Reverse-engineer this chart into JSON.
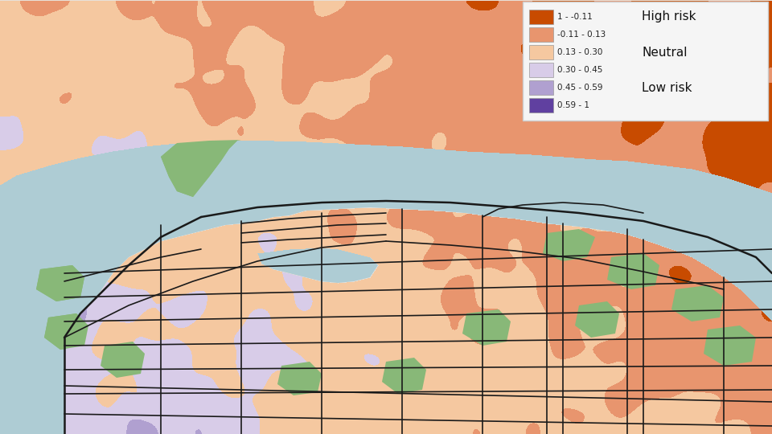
{
  "title": "",
  "figsize": [
    9.6,
    5.4
  ],
  "dpi": 100,
  "background_color": "#aeccd4",
  "legend_colors": [
    "#c84b00",
    "#e8956e",
    "#f5c8a0",
    "#d8cce8",
    "#b0a0d0",
    "#6040a0"
  ],
  "legend_labels": [
    "1 - -0.11",
    "-0.11 - 0.13",
    "0.13 - 0.30",
    "0.30 - 0.45",
    "0.45 - 0.59",
    "0.59 - 1"
  ],
  "risk_labels": [
    "High risk",
    "",
    "Neutral",
    "",
    "Low risk",
    ""
  ],
  "water_color": "#aeccd4",
  "land_bg_color": "#e8e0d8",
  "green_color": "#88b878",
  "white_color": "#ffffff",
  "road_color": "#1a1a1a",
  "legend_bg": "#f5f5f5",
  "legend_border": "#cccccc"
}
